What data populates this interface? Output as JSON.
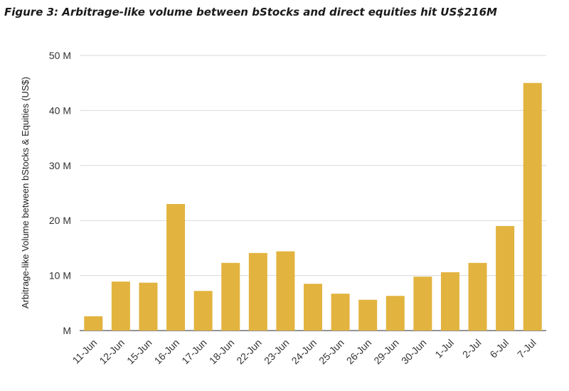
{
  "chart_data": {
    "type": "bar",
    "title": "Figure 3: Arbitrage-like volume between bStocks and direct equities hit US$216M",
    "xlabel": "",
    "ylabel": "Arbitrage-like Volume between bStocks & Equities (US$)",
    "ylim": [
      0,
      50000000
    ],
    "yticks": [
      {
        "value": 0,
        "label": "M"
      },
      {
        "value": 10000000,
        "label": "10 M"
      },
      {
        "value": 20000000,
        "label": "20 M"
      },
      {
        "value": 30000000,
        "label": "30 M"
      },
      {
        "value": 40000000,
        "label": "40 M"
      },
      {
        "value": 50000000,
        "label": "50 M"
      }
    ],
    "grid": true,
    "bar_color": "#E2B33E",
    "categories": [
      "11-Jun",
      "12-Jun",
      "15-Jun",
      "16-Jun",
      "17-Jun",
      "18-Jun",
      "22-Jun",
      "23-Jun",
      "24-Jun",
      "25-Jun",
      "26-Jun",
      "29-Jun",
      "30-Jun",
      "1-Jul",
      "2-Jul",
      "6-Jul",
      "7-Jul"
    ],
    "values": [
      2600000,
      8900000,
      8700000,
      23000000,
      7200000,
      12300000,
      14100000,
      14400000,
      8500000,
      6700000,
      5600000,
      6300000,
      9800000,
      10600000,
      12300000,
      19000000,
      45000000
    ]
  }
}
